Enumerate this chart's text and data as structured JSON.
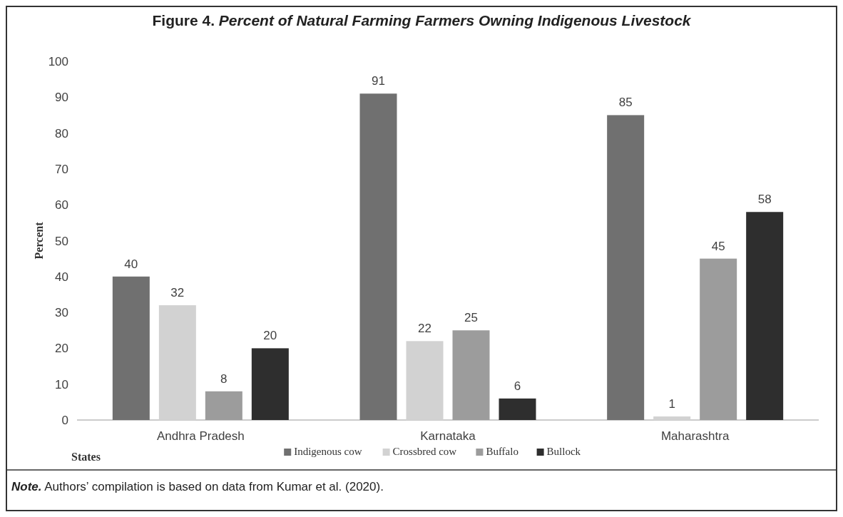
{
  "chart_data": {
    "type": "bar",
    "title": "Figure 4. Percent of Natural Farming Farmers Owning Indigenous Livestock",
    "xlabel": "States",
    "ylabel": "Percent",
    "categories": [
      "Andhra Pradesh",
      "Karnataka",
      "Maharashtra"
    ],
    "series": [
      {
        "name": "Indigenous cow",
        "color": "#707070",
        "values": [
          40,
          91,
          85
        ]
      },
      {
        "name": "Crossbred cow",
        "color": "#d2d2d2",
        "values": [
          32,
          22,
          1
        ]
      },
      {
        "name": "Buffalo",
        "color": "#9c9c9c",
        "values": [
          8,
          25,
          45
        ]
      },
      {
        "name": "Bullock",
        "color": "#2e2e2e",
        "values": [
          20,
          6,
          58
        ]
      }
    ],
    "ylim": [
      0,
      100
    ],
    "yticks": [
      0,
      10,
      20,
      30,
      40,
      50,
      60,
      70,
      80,
      90,
      100
    ],
    "data_labels": true,
    "legend": "bottom",
    "grid": false,
    "annotations": [
      "Note. Authors’ compilation is based on data from Kumar et al. (2020)."
    ]
  }
}
